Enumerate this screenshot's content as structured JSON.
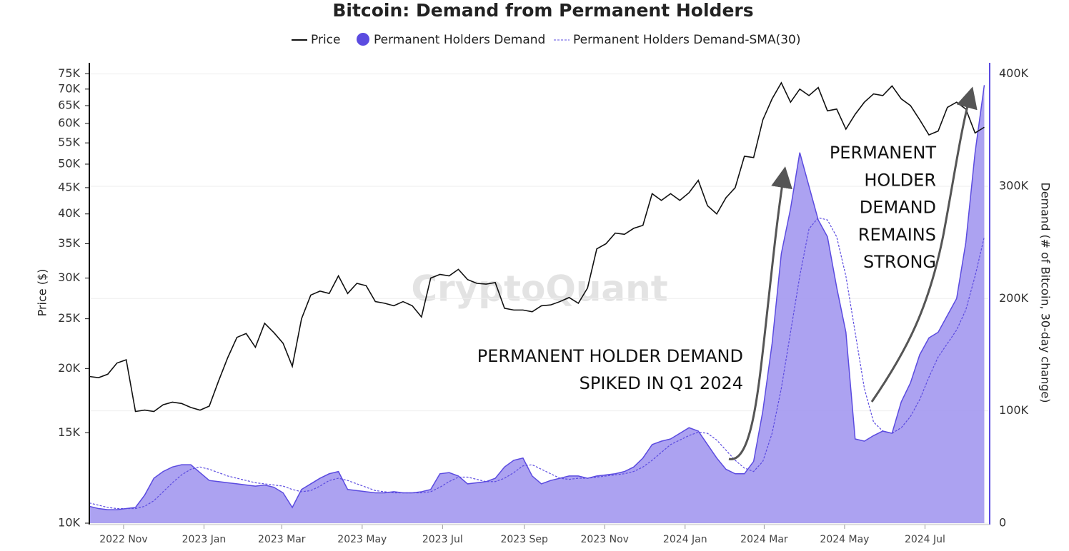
{
  "chart_data": {
    "type": "line_area",
    "title": "Bitcoin: Demand from Permanent Holders",
    "watermark": "CryptoQuant",
    "y_label": "Price ($)",
    "y2_label": "Demand (# of Bitcoin, 30-day change)",
    "annotations": [
      [
        "PERMANENT HOLDER DEMAND",
        "SPIKED IN Q1 2024"
      ],
      [
        "PERMANENT",
        "HOLDER",
        "DEMAND",
        "REMAINS",
        "STRONG"
      ]
    ],
    "log_y": true,
    "grid": true,
    "xlim": [
      "2022-10-06",
      "2024-08-18"
    ],
    "xticks": [
      {
        "value": "2022-11-01",
        "label": "2022 Nov"
      },
      {
        "value": "2023-01-01",
        "label": "2023 Jan"
      },
      {
        "value": "2023-03-01",
        "label": "2023 Mar"
      },
      {
        "value": "2023-05-01",
        "label": "2023 May"
      },
      {
        "value": "2023-07-01",
        "label": "2023 Jul"
      },
      {
        "value": "2023-09-01",
        "label": "2023 Sep"
      },
      {
        "value": "2023-11-01",
        "label": "2023 Nov"
      },
      {
        "value": "2024-01-01",
        "label": "2024 Jan"
      },
      {
        "value": "2024-03-01",
        "label": "2024 Mar"
      },
      {
        "value": "2024-05-01",
        "label": "2024 May"
      },
      {
        "value": "2024-07-01",
        "label": "2024 Jul"
      }
    ],
    "ylim": [
      10000,
      78000
    ],
    "yticks": [
      {
        "value": 10000,
        "label": "10K"
      },
      {
        "value": 15000,
        "label": "15K"
      },
      {
        "value": 20000,
        "label": "20K"
      },
      {
        "value": 25000,
        "label": "25K"
      },
      {
        "value": 30000,
        "label": "30K"
      },
      {
        "value": 35000,
        "label": "35K"
      },
      {
        "value": 40000,
        "label": "40K"
      },
      {
        "value": 45000,
        "label": "45K"
      },
      {
        "value": 50000,
        "label": "50K"
      },
      {
        "value": 55000,
        "label": "55K"
      },
      {
        "value": 60000,
        "label": "60K"
      },
      {
        "value": 65000,
        "label": "65K"
      },
      {
        "value": 70000,
        "label": "70K"
      },
      {
        "value": 75000,
        "label": "75K"
      }
    ],
    "y2lim": [
      0,
      408000
    ],
    "y2ticks": [
      0,
      {
        "value": 100000,
        "label": "100K"
      },
      {
        "value": 200000,
        "label": "200K"
      },
      {
        "value": 300000,
        "label": "300K"
      },
      {
        "value": 400000,
        "label": "400K"
      }
    ],
    "x": [
      "2022-10-06",
      "2022-10-13",
      "2022-10-20",
      "2022-10-27",
      "2022-11-03",
      "2022-11-10",
      "2022-11-17",
      "2022-11-24",
      "2022-12-01",
      "2022-12-08",
      "2022-12-15",
      "2022-12-22",
      "2022-12-29",
      "2023-01-05",
      "2023-01-12",
      "2023-01-19",
      "2023-01-26",
      "2023-02-02",
      "2023-02-09",
      "2023-02-16",
      "2023-02-23",
      "2023-03-02",
      "2023-03-09",
      "2023-03-16",
      "2023-03-23",
      "2023-03-30",
      "2023-04-06",
      "2023-04-13",
      "2023-04-20",
      "2023-04-27",
      "2023-05-04",
      "2023-05-11",
      "2023-05-18",
      "2023-05-25",
      "2023-06-01",
      "2023-06-08",
      "2023-06-15",
      "2023-06-22",
      "2023-06-29",
      "2023-07-06",
      "2023-07-13",
      "2023-07-20",
      "2023-07-27",
      "2023-08-03",
      "2023-08-10",
      "2023-08-17",
      "2023-08-24",
      "2023-08-31",
      "2023-09-07",
      "2023-09-14",
      "2023-09-21",
      "2023-09-28",
      "2023-10-05",
      "2023-10-12",
      "2023-10-19",
      "2023-10-26",
      "2023-11-02",
      "2023-11-09",
      "2023-11-16",
      "2023-11-23",
      "2023-11-30",
      "2023-12-07",
      "2023-12-14",
      "2023-12-21",
      "2023-12-28",
      "2024-01-04",
      "2024-01-11",
      "2024-01-18",
      "2024-01-25",
      "2024-02-01",
      "2024-02-08",
      "2024-02-15",
      "2024-02-22",
      "2024-02-29",
      "2024-03-07",
      "2024-03-14",
      "2024-03-21",
      "2024-03-28",
      "2024-04-04",
      "2024-04-11",
      "2024-04-18",
      "2024-04-25",
      "2024-05-02",
      "2024-05-09",
      "2024-05-16",
      "2024-05-23",
      "2024-05-30",
      "2024-06-06",
      "2024-06-13",
      "2024-06-20",
      "2024-06-27",
      "2024-07-04",
      "2024-07-11",
      "2024-07-18",
      "2024-07-25",
      "2024-08-01",
      "2024-08-08",
      "2024-08-15"
    ],
    "series": [
      {
        "name": "Price",
        "kind": "line",
        "axis": "y",
        "color": "#111111",
        "values": [
          19300,
          19200,
          19500,
          20500,
          20800,
          16500,
          16600,
          16500,
          17000,
          17200,
          17100,
          16800,
          16600,
          16900,
          18900,
          21000,
          23000,
          23400,
          22000,
          24500,
          23500,
          22400,
          20200,
          25000,
          27800,
          28300,
          28000,
          30300,
          28000,
          29300,
          29000,
          27000,
          26800,
          26500,
          27000,
          26500,
          25200,
          30000,
          30500,
          30300,
          31200,
          29800,
          29300,
          29200,
          29400,
          26200,
          26000,
          26000,
          25800,
          26500,
          26600,
          27000,
          27500,
          26800,
          28700,
          34200,
          35000,
          36700,
          36500,
          37500,
          38000,
          43800,
          42500,
          43800,
          42500,
          44000,
          46500,
          41500,
          40000,
          43000,
          45000,
          51800,
          51500,
          61000,
          67000,
          72000,
          66000,
          70000,
          68000,
          70500,
          63500,
          64000,
          58500,
          62500,
          66000,
          68500,
          68000,
          71000,
          67000,
          65000,
          61000,
          57000,
          58000,
          64500,
          66000,
          64000,
          57500,
          59000
        ]
      },
      {
        "name": "Permanent Holders Demand",
        "kind": "area",
        "axis": "y2",
        "color": "#5b4be0",
        "fill": "#a398ef",
        "values": [
          15000,
          13000,
          12000,
          12000,
          13000,
          14000,
          25000,
          40000,
          46000,
          50000,
          52000,
          52000,
          45000,
          38000,
          37000,
          36000,
          35000,
          34000,
          33000,
          34000,
          32000,
          27000,
          14000,
          30000,
          35000,
          40000,
          44000,
          46000,
          30000,
          29000,
          28000,
          27000,
          27000,
          28000,
          27000,
          27000,
          28000,
          30000,
          44000,
          45000,
          42000,
          35000,
          36000,
          37000,
          40000,
          50000,
          56000,
          58000,
          42000,
          35000,
          38000,
          40000,
          42000,
          42000,
          40000,
          42000,
          43000,
          44000,
          46000,
          50000,
          58000,
          70000,
          73000,
          75000,
          80000,
          85000,
          82000,
          70000,
          58000,
          48000,
          44000,
          44000,
          55000,
          100000,
          160000,
          240000,
          280000,
          330000,
          300000,
          270000,
          255000,
          210000,
          170000,
          75000,
          73000,
          78000,
          82000,
          80000,
          108000,
          125000,
          150000,
          165000,
          170000,
          185000,
          200000,
          250000,
          330000,
          390000
        ]
      },
      {
        "name": "Permanent Holders Demand-SMA(30)",
        "kind": "dashed",
        "axis": "y2",
        "color": "#5b4be0",
        "values": [
          18000,
          16000,
          14000,
          13000,
          13000,
          13000,
          15000,
          20000,
          28000,
          36000,
          43000,
          48000,
          50000,
          48000,
          45000,
          42000,
          40000,
          38000,
          36000,
          35000,
          34000,
          33000,
          30000,
          28000,
          29000,
          33000,
          38000,
          40000,
          38000,
          35000,
          32000,
          29000,
          28000,
          27000,
          27000,
          27000,
          27000,
          28000,
          32000,
          37000,
          41000,
          41000,
          39000,
          37000,
          37000,
          40000,
          45000,
          51000,
          52000,
          48000,
          44000,
          40000,
          39000,
          40000,
          40000,
          41000,
          42000,
          43000,
          44000,
          46000,
          50000,
          56000,
          63000,
          70000,
          74000,
          78000,
          81000,
          80000,
          74000,
          65000,
          56000,
          49000,
          46000,
          55000,
          80000,
          120000,
          170000,
          220000,
          262000,
          272000,
          270000,
          255000,
          220000,
          170000,
          120000,
          90000,
          82000,
          80000,
          85000,
          95000,
          110000,
          130000,
          148000,
          160000,
          172000,
          190000,
          220000,
          255000
        ]
      }
    ]
  }
}
